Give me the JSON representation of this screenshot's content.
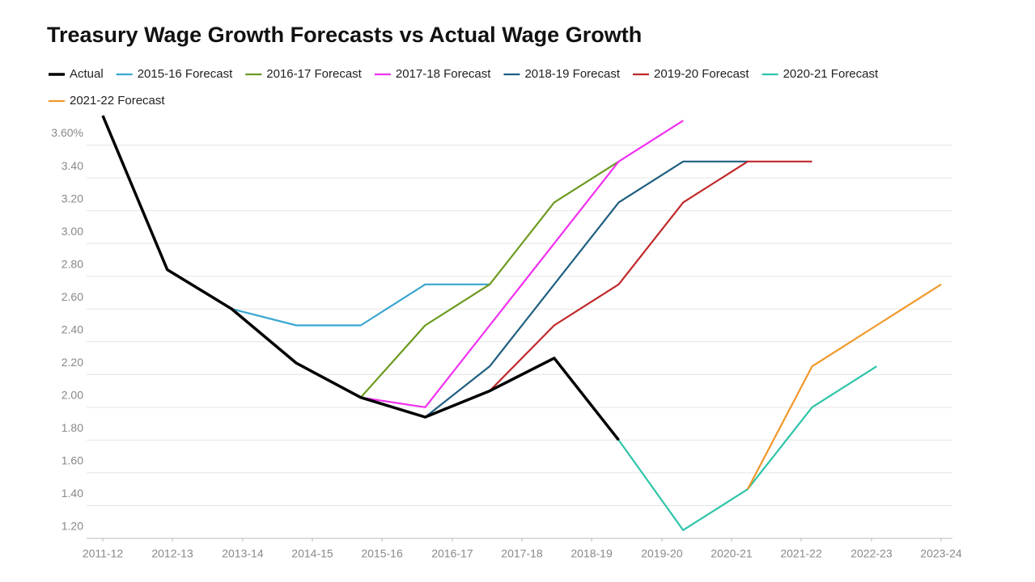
{
  "chart_data": {
    "type": "line",
    "title": "Treasury Wage Growth Forecasts vs Actual Wage Growth",
    "x": [
      0,
      1,
      2,
      3,
      4,
      5,
      6,
      7,
      8,
      9,
      10,
      11,
      12,
      13
    ],
    "xlim": [
      0,
      13
    ],
    "xticks": [
      {
        "value": 0,
        "label": "2011-12"
      },
      {
        "value": 1.08,
        "label": "2012-13"
      },
      {
        "value": 2.17,
        "label": "2013-14"
      },
      {
        "value": 3.25,
        "label": "2014-15"
      },
      {
        "value": 4.33,
        "label": "2015-16"
      },
      {
        "value": 5.42,
        "label": "2016-17"
      },
      {
        "value": 6.5,
        "label": "2017-18"
      },
      {
        "value": 7.58,
        "label": "2018-19"
      },
      {
        "value": 8.67,
        "label": "2019-20"
      },
      {
        "value": 9.75,
        "label": "2020-21"
      },
      {
        "value": 10.83,
        "label": "2021-22"
      },
      {
        "value": 11.92,
        "label": "2022-23"
      },
      {
        "value": 13,
        "label": "2023-24"
      }
    ],
    "ylim": [
      1.2,
      3.8
    ],
    "yticks": [
      {
        "value": 1.2,
        "label": "1.20"
      },
      {
        "value": 1.4,
        "label": "1.40"
      },
      {
        "value": 1.6,
        "label": "1.60"
      },
      {
        "value": 1.8,
        "label": "1.80"
      },
      {
        "value": 2.0,
        "label": "2.00"
      },
      {
        "value": 2.2,
        "label": "2.20"
      },
      {
        "value": 2.4,
        "label": "2.40"
      },
      {
        "value": 2.6,
        "label": "2.60"
      },
      {
        "value": 2.8,
        "label": "2.80"
      },
      {
        "value": 3.0,
        "label": "3.00"
      },
      {
        "value": 3.2,
        "label": "3.20"
      },
      {
        "value": 3.4,
        "label": "3.40"
      },
      {
        "value": 3.6,
        "label": "3.60%"
      }
    ],
    "grid": true,
    "series": [
      {
        "name": "Actual",
        "color": "#000000",
        "values": [
          3.78,
          2.84,
          2.6,
          2.27,
          2.06,
          1.94,
          2.1,
          2.3,
          1.8,
          null,
          null,
          null,
          null,
          null
        ]
      },
      {
        "name": "2015-16 Forecast",
        "color": "#3aa6d0",
        "values": [
          null,
          null,
          2.6,
          2.5,
          2.5,
          2.75,
          2.75,
          null,
          null,
          null,
          null,
          null,
          null,
          null
        ]
      },
      {
        "name": "2016-17 Forecast",
        "color": "#6c9a1f",
        "values": [
          null,
          null,
          null,
          null,
          2.06,
          2.5,
          2.75,
          3.25,
          3.5,
          null,
          null,
          null,
          null,
          null
        ]
      },
      {
        "name": "2017-18 Forecast",
        "color": "#f030f0",
        "values": [
          null,
          null,
          null,
          null,
          2.06,
          2.0,
          2.5,
          3.0,
          3.5,
          3.75,
          null,
          null,
          null,
          null
        ]
      },
      {
        "name": "2018-19 Forecast",
        "color": "#1f5f80",
        "values": [
          null,
          null,
          null,
          null,
          null,
          1.94,
          2.25,
          2.75,
          3.25,
          3.5,
          3.5,
          null,
          null,
          null
        ]
      },
      {
        "name": "2019-20 Forecast",
        "color": "#c0282a",
        "values": [
          null,
          null,
          null,
          null,
          null,
          null,
          2.1,
          2.5,
          2.75,
          3.25,
          3.5,
          3.5,
          null,
          null
        ]
      },
      {
        "name": "2020-21 Forecast",
        "color": "#2ec4aa",
        "values": [
          null,
          null,
          null,
          null,
          null,
          null,
          null,
          null,
          1.8,
          1.25,
          1.5,
          2.0,
          2.25,
          null
        ]
      },
      {
        "name": "2021-22 Forecast",
        "color": "#f0982a",
        "values": [
          null,
          null,
          null,
          null,
          null,
          null,
          null,
          null,
          null,
          null,
          1.5,
          2.25,
          2.5,
          2.75
        ]
      }
    ]
  }
}
